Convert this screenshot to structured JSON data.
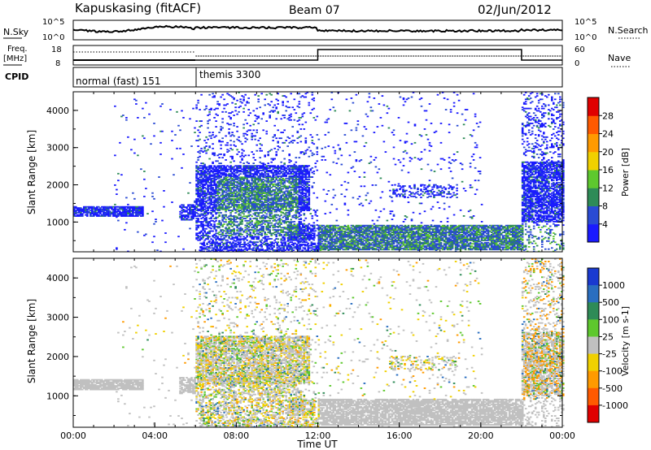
{
  "header": {
    "station": "Kapuskasing (fitACF)",
    "beam": "Beam 07",
    "date": "02/Jun/2012"
  },
  "panels": {
    "nsky": {
      "label": "N.Sky",
      "right_label": "N.Search",
      "ticks_left": [
        "10^5",
        "10^0"
      ],
      "ticks_right": [
        "10^5",
        "10^0"
      ]
    },
    "freq": {
      "label_line1": "Freq.",
      "label_line2": "[MHz]",
      "right_label": "Nave",
      "ticks_left": [
        "18",
        "8"
      ],
      "ticks_right": [
        "60",
        "0"
      ]
    },
    "cpid": {
      "label": "CPID",
      "modes": [
        "normal (fast) 151",
        "themis 3300"
      ]
    }
  },
  "chart_data": [
    {
      "type": "heatmap",
      "name": "power",
      "ylabel": "Slant Range [km]",
      "ylim": [
        200,
        4500
      ],
      "yticks": [
        "1000",
        "2000",
        "3000",
        "4000"
      ],
      "xlim_hours": [
        0,
        24
      ],
      "colorbar": {
        "label": "Power [dB]",
        "ticks": [
          "4",
          "8",
          "12",
          "16",
          "20",
          "24",
          "28"
        ],
        "colors": [
          "#1a1aff",
          "#2a4bd4",
          "#2e8b57",
          "#5ec82e",
          "#f0d000",
          "#ff9a00",
          "#ff5a00",
          "#e00000"
        ]
      }
    },
    {
      "type": "heatmap",
      "name": "velocity",
      "ylabel": "Slant Range [km]",
      "ylim": [
        200,
        4500
      ],
      "yticks": [
        "1000",
        "2000",
        "3000",
        "4000"
      ],
      "xlim_hours": [
        0,
        24
      ],
      "colorbar": {
        "label": "Velocity [m s-1]",
        "ticks": [
          "1000",
          "500",
          "100",
          "25",
          "-25",
          "-100",
          "-500",
          "-1000"
        ],
        "colors": [
          "#1a3ad0",
          "#2a6ec0",
          "#2e8b57",
          "#5ec82e",
          "#c0c0c0",
          "#f0d000",
          "#ff9a00",
          "#ff5a00",
          "#e00000"
        ]
      }
    }
  ],
  "xaxis": {
    "label": "Time UT",
    "ticks": [
      "00:00",
      "04:00",
      "08:00",
      "12:00",
      "16:00",
      "20:00",
      "00:00"
    ]
  }
}
